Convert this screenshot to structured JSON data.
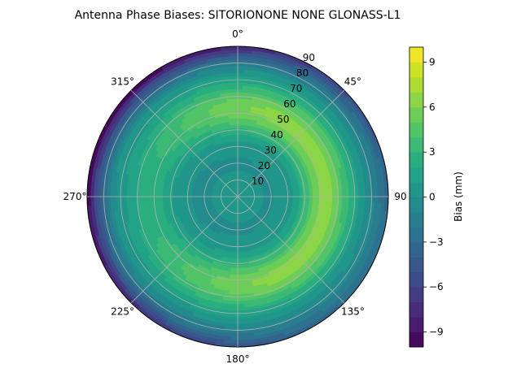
{
  "chart_data": {
    "type": "polar-contour",
    "title": "Antenna Phase Biases: SITORIONONE     NONE GLONASS-L1",
    "angular_axis": {
      "direction": "clockwise",
      "zero_location": "top",
      "tick_labels": [
        "0°",
        "45°",
        "90",
        "135°",
        "180°",
        "225°",
        "270°",
        "315°"
      ],
      "tick_degrees": [
        0,
        45,
        90,
        135,
        180,
        225,
        270,
        315
      ]
    },
    "radial_axis": {
      "tick_labels": [
        "10",
        "20",
        "30",
        "40",
        "50",
        "60",
        "70",
        "80",
        "90"
      ],
      "tick_values": [
        10,
        20,
        30,
        40,
        50,
        60,
        70,
        80,
        90
      ],
      "range": [
        0,
        90
      ]
    },
    "colorbar": {
      "label": "Bias (mm)",
      "tick_labels": [
        "−9",
        "−6",
        "−3",
        "0",
        "3",
        "6",
        "9"
      ],
      "tick_values": [
        -9,
        -6,
        -3,
        0,
        3,
        6,
        9
      ],
      "range": [
        -10,
        10
      ],
      "levels": 20,
      "colormap": "viridis"
    },
    "grid": true,
    "field_description": "Near zero in center, ring of positive bias (4–7 mm) between zenith 40–70, strongest toward east, dropping to negative (−3 to −9 mm) at the horizon, lowest toward north-west.",
    "field_samples": [
      {
        "zenith": 0,
        "bias": 0.2
      },
      {
        "zenith": 30,
        "bias": 1.5
      },
      {
        "zenith": 55,
        "bias": 5.2
      },
      {
        "zenith": 80,
        "bias": -1.5
      },
      {
        "zenith": 90,
        "bias": -4.0
      }
    ]
  }
}
